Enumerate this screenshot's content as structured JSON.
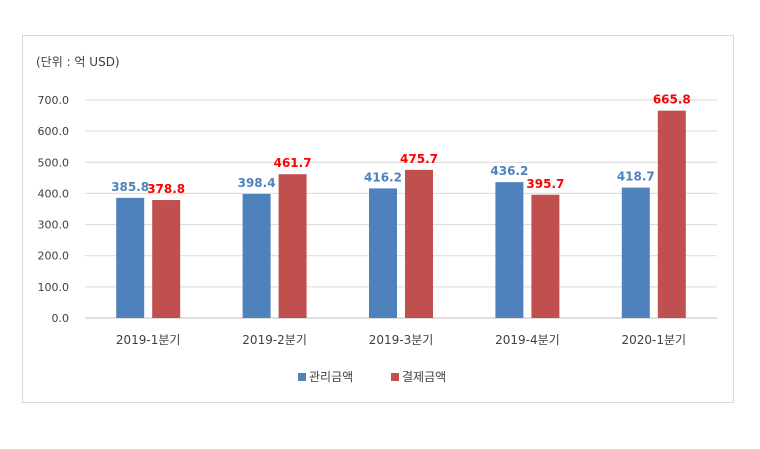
{
  "chart_data": {
    "type": "bar",
    "unit_label": "(단위 : 억 USD)",
    "categories": [
      "2019-1분기",
      "2019-2분기",
      "2019-3분기",
      "2019-4분기",
      "2020-1분기"
    ],
    "series": [
      {
        "name": "관리금액",
        "color": "#4f81bd",
        "label_color": "#4f81bd",
        "values": [
          385.8,
          398.4,
          416.2,
          436.2,
          418.7
        ],
        "labels": [
          "385.8",
          "398.4",
          "416.2",
          "436.2",
          "418.7"
        ]
      },
      {
        "name": "결제금액",
        "color": "#c0504d",
        "label_color": "#ff0000",
        "values": [
          378.8,
          461.7,
          475.7,
          395.7,
          665.8
        ],
        "labels": [
          "378.8",
          "461.7",
          "475.7",
          "395.7",
          "665.8"
        ]
      }
    ],
    "ylim": [
      0,
      700
    ],
    "yticks": [
      0,
      100,
      200,
      300,
      400,
      500,
      600,
      700
    ],
    "ytick_labels": [
      "0.0",
      "100.0",
      "200.0",
      "300.0",
      "400.0",
      "500.0",
      "600.0",
      "700.0"
    ],
    "grid": true,
    "legend_position": "bottom"
  }
}
